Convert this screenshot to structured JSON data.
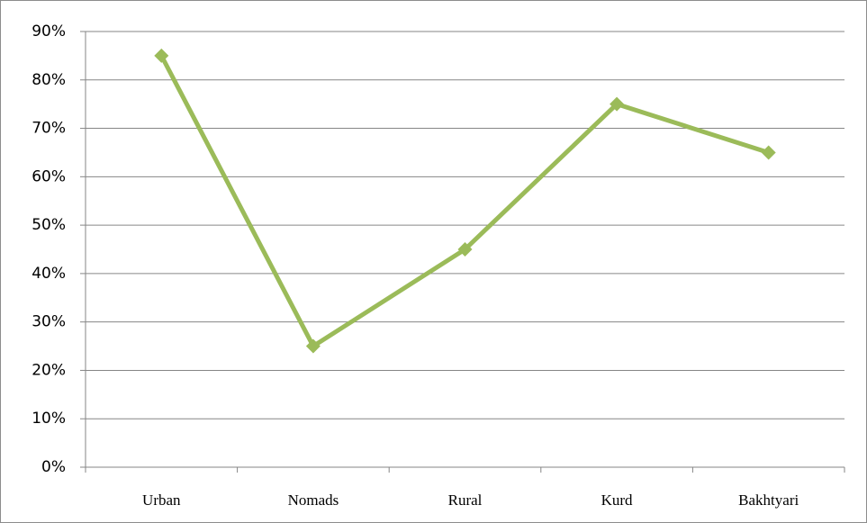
{
  "chart_data": {
    "type": "line",
    "categories": [
      "Urban",
      "Nomads",
      "Rural",
      "Kurd",
      "Bakhtyari"
    ],
    "values": [
      85,
      25,
      45,
      75,
      65
    ],
    "color": "#9bbb59",
    "ylim": [
      0,
      90
    ],
    "yticks": [
      {
        "value": 0,
        "label": "0%"
      },
      {
        "value": 10,
        "label": "10%"
      },
      {
        "value": 20,
        "label": "20%"
      },
      {
        "value": 30,
        "label": "30%"
      },
      {
        "value": 40,
        "label": "40%"
      },
      {
        "value": 50,
        "label": "50%"
      },
      {
        "value": 60,
        "label": "60%"
      },
      {
        "value": 70,
        "label": "70%"
      },
      {
        "value": 80,
        "label": "80%"
      },
      {
        "value": 90,
        "label": "90%"
      }
    ],
    "grid": true
  }
}
